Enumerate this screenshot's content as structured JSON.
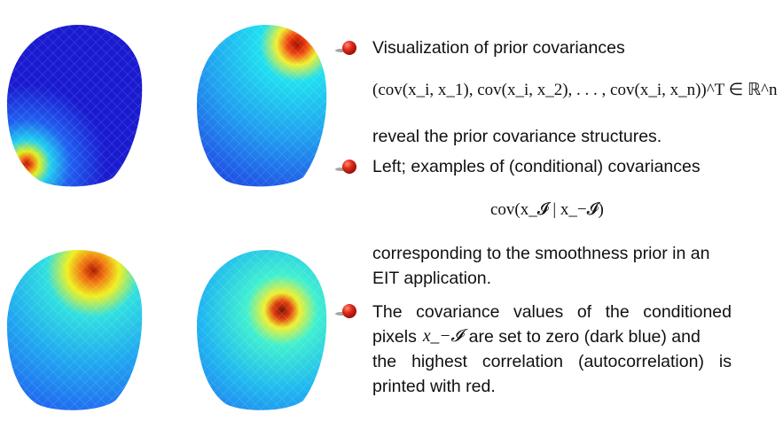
{
  "bullets": [
    {
      "lead": "Visualization of prior covariances",
      "formula": "(cov(x_i, x_1), cov(x_i, x_2), . . . , cov(x_i, x_n))^T ∈ ℝ^n",
      "follow": "reveal the prior covariance structures."
    },
    {
      "lead": "Left; examples of (conditional) covariances",
      "formula": "cov(x_𝓘 | x_−𝓘)",
      "follow_line1": "corresponding to the smoothness prior in an",
      "follow_line2": "EIT application."
    },
    {
      "line1": "The covariance values of the conditioned",
      "line2_pre": "pixels",
      "line2_math": "x_−𝓘",
      "line2_post": "are set to zero (dark blue) and",
      "line3": "the highest correlation (autocorrelation) is",
      "line4": "printed with red."
    }
  ],
  "colors": {
    "deep_blue": "#1a1ad8",
    "cyan": "#22d4f0",
    "yellow": "#f0e020",
    "red": "#c81e0a",
    "bullet": "#d0281a"
  }
}
